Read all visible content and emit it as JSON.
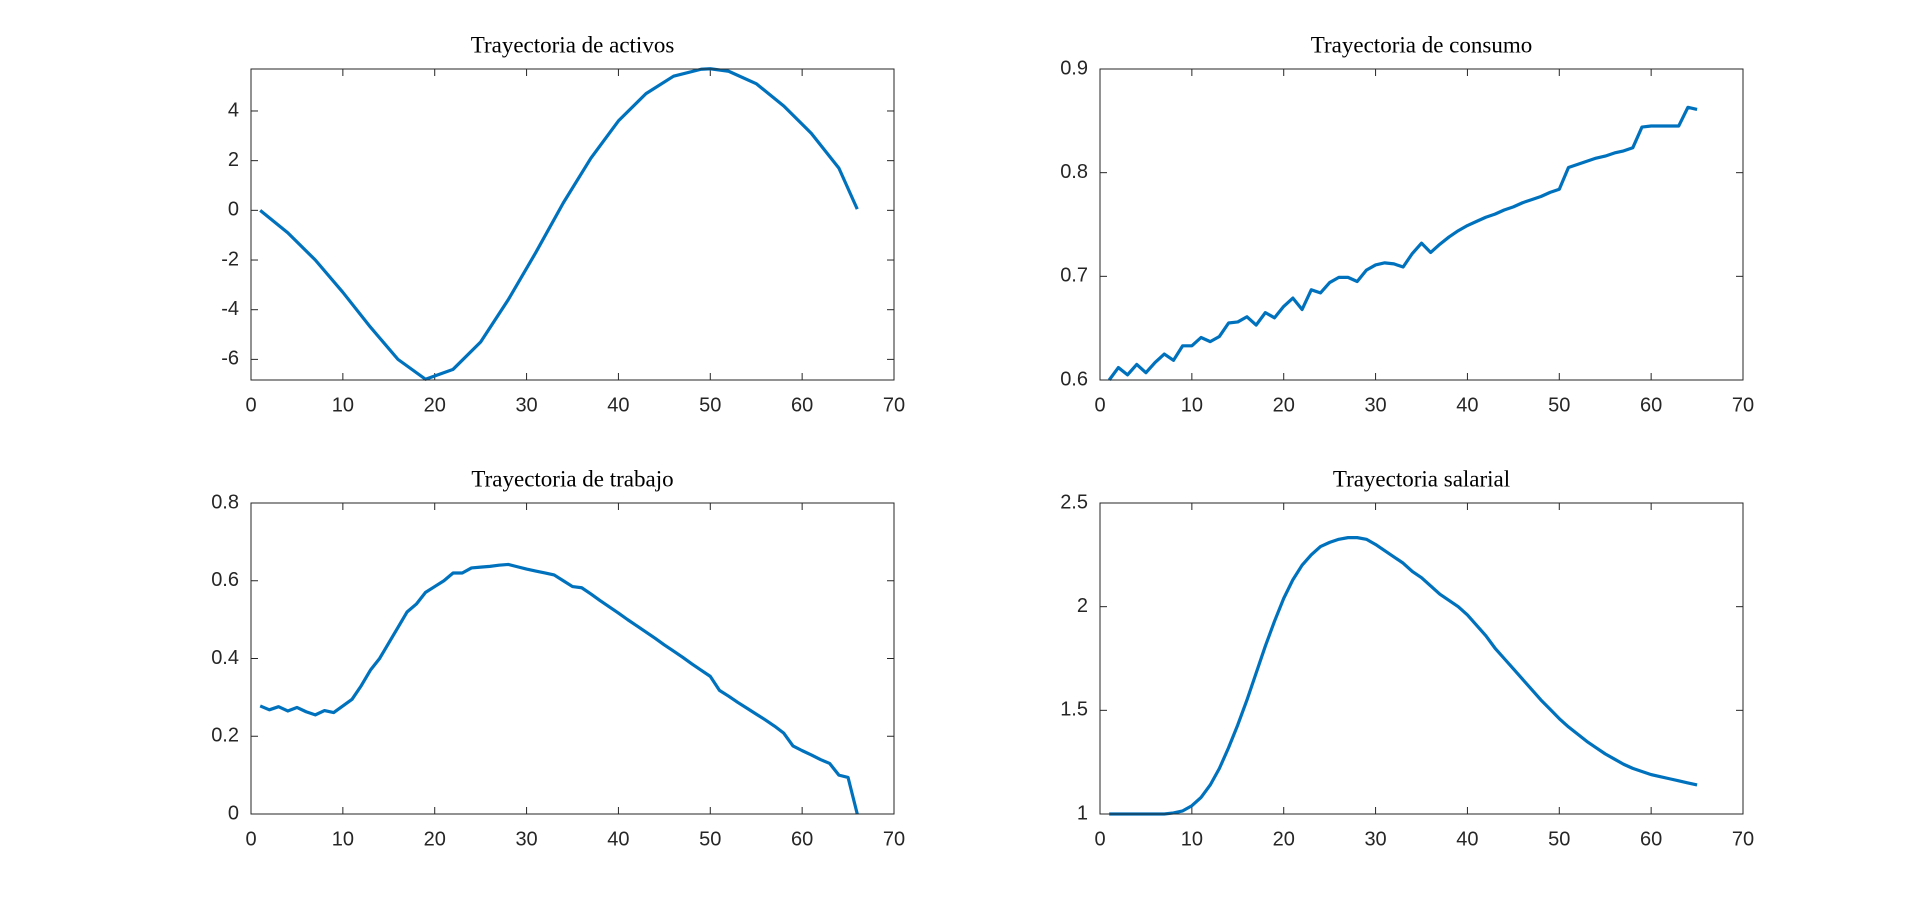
{
  "chart_data": [
    {
      "type": "line",
      "title": "Trayectoria de activos",
      "xlim": [
        0,
        70
      ],
      "xticks": [
        0,
        10,
        20,
        30,
        40,
        50,
        60,
        70
      ],
      "ylim": [
        -6.83,
        5.69
      ],
      "yticks": [
        -6,
        -4,
        -2,
        0,
        2,
        4
      ],
      "series": [
        {
          "color": "#0072bd",
          "x": [
            1,
            4,
            7,
            10,
            13,
            16,
            19,
            22,
            25,
            28,
            31,
            34,
            37,
            40,
            43,
            46,
            49,
            50,
            52,
            55,
            58,
            61,
            64,
            66
          ],
          "values": [
            0,
            -0.9,
            -2.0,
            -3.3,
            -4.7,
            -6.0,
            -6.8,
            -6.4,
            -5.3,
            -3.6,
            -1.7,
            0.3,
            2.1,
            3.6,
            4.7,
            5.4,
            5.68,
            5.7,
            5.6,
            5.1,
            4.2,
            3.1,
            1.7,
            0.05
          ]
        }
      ]
    },
    {
      "type": "line",
      "title": "Trayectoria de consumo",
      "xlim": [
        0,
        70
      ],
      "xticks": [
        0,
        10,
        20,
        30,
        40,
        50,
        60,
        70
      ],
      "ylim": [
        0.6,
        0.9
      ],
      "yticks": [
        0.6,
        0.7,
        0.8,
        0.9
      ],
      "series": [
        {
          "color": "#0072bd",
          "x": [
            1,
            2,
            3,
            4,
            5,
            6,
            7,
            8,
            9,
            10,
            11,
            12,
            13,
            14,
            15,
            16,
            17,
            18,
            19,
            20,
            21,
            22,
            23,
            24,
            25,
            26,
            27,
            28,
            29,
            30,
            31,
            32,
            33,
            34,
            35,
            36,
            37,
            38,
            39,
            40,
            41,
            42,
            43,
            44,
            45,
            46,
            47,
            48,
            49,
            50,
            51,
            52,
            53,
            54,
            55,
            56,
            57,
            58,
            59,
            60,
            61,
            62,
            63,
            64,
            65
          ],
          "values": [
            0.6,
            0.612,
            0.605,
            0.615,
            0.607,
            0.617,
            0.625,
            0.619,
            0.633,
            0.633,
            0.641,
            0.637,
            0.642,
            0.655,
            0.656,
            0.661,
            0.653,
            0.665,
            0.66,
            0.671,
            0.679,
            0.668,
            0.687,
            0.684,
            0.694,
            0.699,
            0.699,
            0.695,
            0.706,
            0.711,
            0.713,
            0.712,
            0.709,
            0.722,
            0.732,
            0.723,
            0.731,
            0.738,
            0.744,
            0.749,
            0.753,
            0.757,
            0.76,
            0.764,
            0.767,
            0.771,
            0.774,
            0.777,
            0.781,
            0.784,
            0.805,
            0.808,
            0.811,
            0.814,
            0.816,
            0.819,
            0.821,
            0.824,
            0.844,
            0.845,
            0.845,
            0.845,
            0.845,
            0.863,
            0.861
          ]
        }
      ]
    },
    {
      "type": "line",
      "title": "Trayectoria de trabajo",
      "xlim": [
        0,
        70
      ],
      "xticks": [
        0,
        10,
        20,
        30,
        40,
        50,
        60,
        70
      ],
      "ylim": [
        0,
        0.8
      ],
      "yticks": [
        0,
        0.2,
        0.4,
        0.6,
        0.8
      ],
      "series": [
        {
          "color": "#0072bd",
          "x": [
            1,
            2,
            3,
            4,
            5,
            6,
            7,
            8,
            9,
            10,
            11,
            12,
            13,
            14,
            15,
            16,
            17,
            18,
            19,
            20,
            21,
            22,
            23,
            24,
            25,
            26,
            27,
            28,
            29,
            30,
            31,
            32,
            33,
            34,
            35,
            36,
            37,
            38,
            39,
            40,
            41,
            42,
            43,
            44,
            45,
            46,
            47,
            48,
            49,
            50,
            51,
            52,
            53,
            54,
            55,
            56,
            57,
            58,
            59,
            60,
            61,
            62,
            63,
            64,
            65,
            66
          ],
          "values": [
            0.278,
            0.268,
            0.276,
            0.265,
            0.274,
            0.263,
            0.255,
            0.266,
            0.261,
            0.278,
            0.295,
            0.33,
            0.37,
            0.4,
            0.44,
            0.48,
            0.52,
            0.54,
            0.57,
            0.585,
            0.6,
            0.62,
            0.62,
            0.633,
            0.635,
            0.637,
            0.64,
            0.642,
            0.636,
            0.63,
            0.625,
            0.62,
            0.615,
            0.6,
            0.585,
            0.582,
            0.566,
            0.549,
            0.533,
            0.517,
            0.5,
            0.484,
            0.468,
            0.452,
            0.435,
            0.419,
            0.403,
            0.386,
            0.37,
            0.354,
            0.318,
            0.303,
            0.287,
            0.272,
            0.257,
            0.242,
            0.226,
            0.208,
            0.175,
            0.163,
            0.152,
            0.14,
            0.13,
            0.1,
            0.094,
            0
          ]
        }
      ]
    },
    {
      "type": "line",
      "title": "Trayectoria salarial",
      "xlim": [
        0,
        70
      ],
      "xticks": [
        0,
        10,
        20,
        30,
        40,
        50,
        60,
        70
      ],
      "ylim": [
        1,
        2.5
      ],
      "yticks": [
        1,
        1.5,
        2,
        2.5
      ],
      "series": [
        {
          "color": "#0072bd",
          "x": [
            1,
            2,
            3,
            4,
            5,
            6,
            7,
            8,
            9,
            10,
            11,
            12,
            13,
            14,
            15,
            16,
            17,
            18,
            19,
            20,
            21,
            22,
            23,
            24,
            25,
            26,
            27,
            28,
            29,
            30,
            31,
            32,
            33,
            34,
            35,
            36,
            37,
            38,
            39,
            40,
            41,
            42,
            43,
            44,
            45,
            46,
            47,
            48,
            49,
            50,
            51,
            52,
            53,
            54,
            55,
            56,
            57,
            58,
            59,
            60,
            61,
            62,
            63,
            64,
            65
          ],
          "values": [
            1,
            1,
            1,
            1,
            1,
            1,
            1,
            1.005,
            1.015,
            1.04,
            1.08,
            1.14,
            1.22,
            1.32,
            1.43,
            1.55,
            1.68,
            1.81,
            1.93,
            2.04,
            2.13,
            2.2,
            2.25,
            2.29,
            2.31,
            2.325,
            2.333,
            2.333,
            2.325,
            2.3,
            2.27,
            2.24,
            2.21,
            2.17,
            2.14,
            2.1,
            2.06,
            2.03,
            2.0,
            1.96,
            1.91,
            1.86,
            1.8,
            1.75,
            1.7,
            1.65,
            1.6,
            1.55,
            1.505,
            1.46,
            1.42,
            1.385,
            1.35,
            1.32,
            1.29,
            1.265,
            1.24,
            1.22,
            1.205,
            1.19,
            1.18,
            1.17,
            1.16,
            1.15,
            1.14
          ]
        }
      ]
    }
  ]
}
